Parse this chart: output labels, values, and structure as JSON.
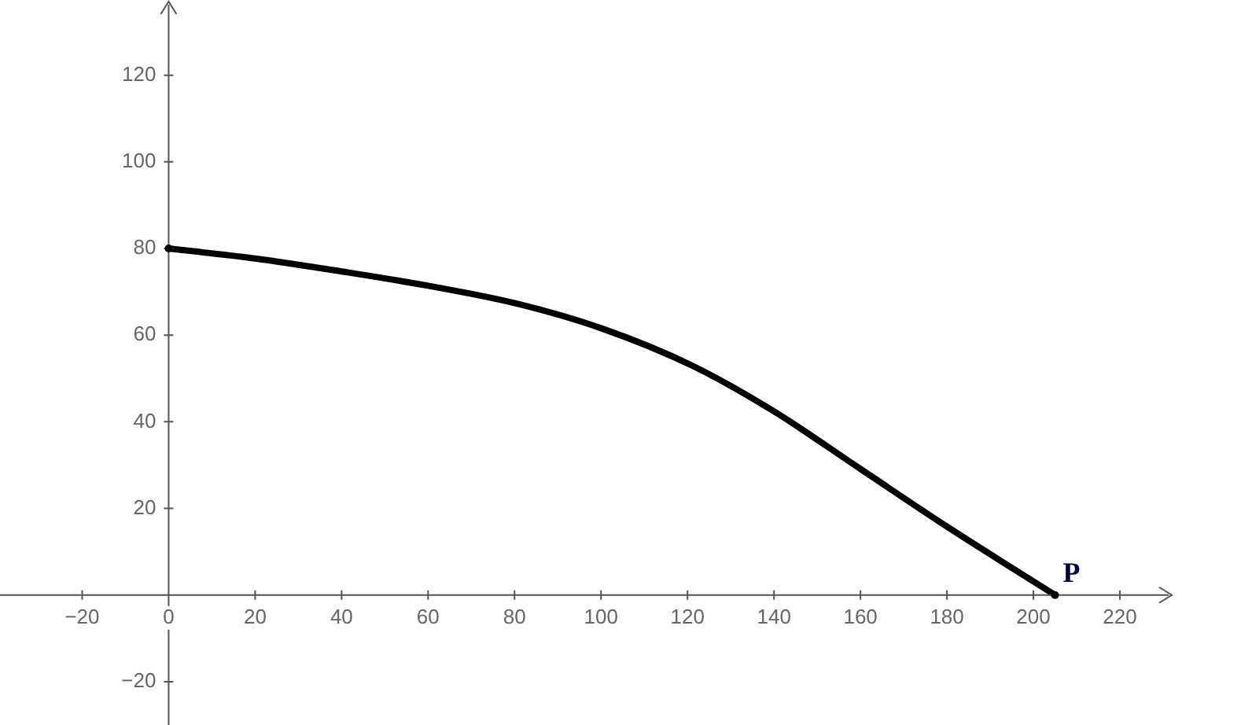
{
  "chart_data": {
    "type": "line",
    "x": [
      0,
      20,
      40,
      60,
      80,
      100,
      121,
      140,
      160,
      180,
      205
    ],
    "series": [
      {
        "color": "#000000",
        "values": [
          80,
          77.7,
          74.7,
          71.4,
          67.4,
          61.6,
          53,
          42.4,
          29.1,
          15.8,
          0
        ]
      }
    ],
    "xlim": [
      -39,
      232
    ],
    "ylim": [
      -30,
      137
    ],
    "xticks": [
      -20,
      0,
      20,
      40,
      60,
      80,
      100,
      120,
      140,
      160,
      180,
      200,
      220
    ],
    "yticks": [
      -20,
      20,
      40,
      60,
      80,
      100,
      120
    ],
    "grid": false,
    "legend": false,
    "marker": "none",
    "line_style": "solid",
    "annotations": [
      {
        "text": "P",
        "x": 205,
        "y": 0
      }
    ]
  }
}
